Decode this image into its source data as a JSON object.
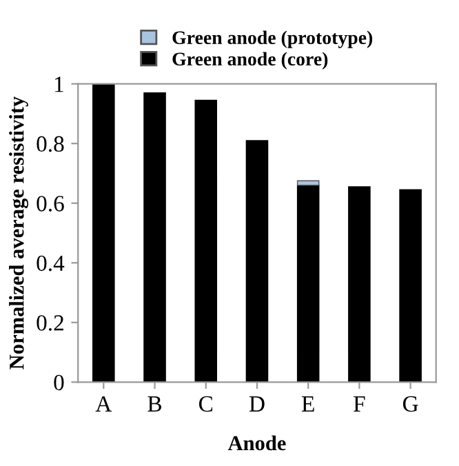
{
  "chart_data": {
    "type": "bar",
    "stacked": true,
    "xlabel": "Anode",
    "ylabel": "Normalized average resistivity",
    "categories": [
      "A",
      "B",
      "C",
      "D",
      "E",
      "F",
      "G"
    ],
    "series": [
      {
        "name": "Green anode (core)",
        "color": "#000000",
        "values": [
          1.0,
          0.97,
          0.945,
          0.81,
          0.66,
          0.655,
          0.645
        ]
      },
      {
        "name": "Green anode (prototype)",
        "color": "#a9c4e0",
        "values": [
          null,
          null,
          null,
          null,
          0.015,
          null,
          null
        ]
      }
    ],
    "ylim": [
      0,
      1
    ],
    "yticks": [
      0,
      0.2,
      0.4,
      0.6,
      0.8,
      1
    ],
    "grid": false,
    "legend": "top"
  }
}
